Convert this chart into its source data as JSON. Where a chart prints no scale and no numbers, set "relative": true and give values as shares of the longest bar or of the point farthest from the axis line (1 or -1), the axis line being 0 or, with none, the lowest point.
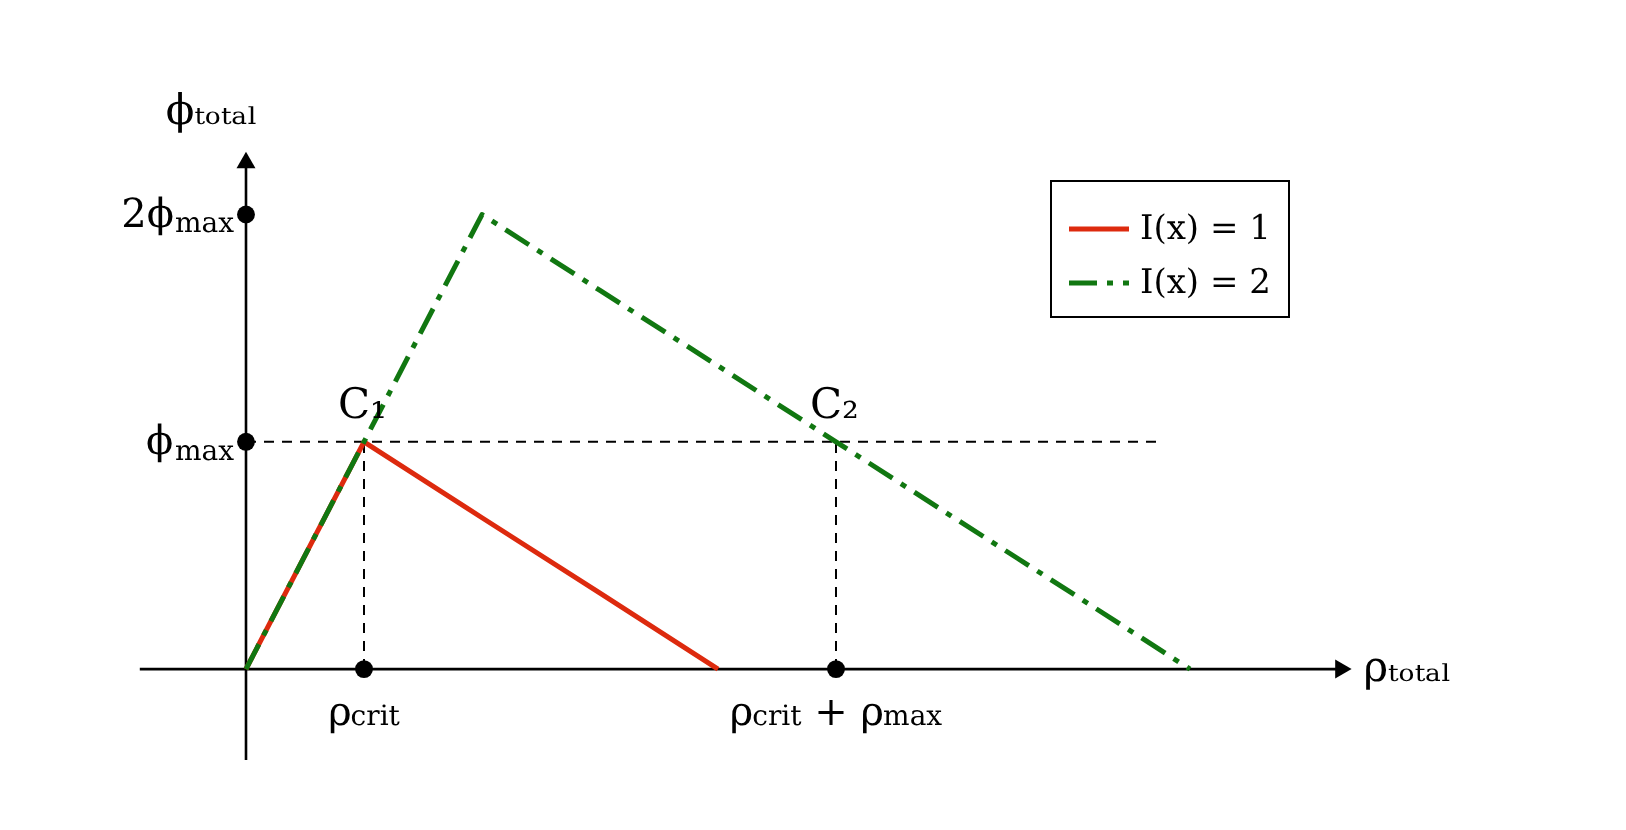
{
  "chart_data": {
    "type": "line",
    "relative": true,
    "xlabel": "ρₜₒₜₐₗ",
    "ylabel": "ϕₜₒₜₐₗ",
    "categories": [
      null,
      null,
      "ρ$_{crit}$",
      null,
      null,
      null,
      "ρ$_{crit}$ + ρ$_{max}$",
      null,
      null,
      null,
      null
    ],
    "series": [
      {
        "name": "I(x) = 1",
        "color": "#dd2a0e",
        "values": [
          null,
          0,
          0.5,
          0.333,
          0.167,
          0,
          null,
          null,
          null,
          null,
          null
        ],
        "line_style": "solid"
      },
      {
        "name": "I(x) = 2",
        "color": "#117711",
        "values": [
          null,
          0,
          0.5,
          1,
          0.833,
          0.667,
          0.5,
          0.333,
          0.167,
          0,
          null
        ],
        "line_style": "dashed"
      }
    ],
    "ref_lines": [
      {
        "axis": "y",
        "value": 0.5,
        "line_style": "dashed",
        "label": "ϕ$_{max}$"
      },
      {
        "axis": "x",
        "value": "ρ$_{crit}$",
        "line_style": "dashed"
      },
      {
        "axis": "x",
        "value": "ρ$_{crit}$ + ρ$_{max}$",
        "line_style": "dashed"
      }
    ],
    "annotations": [
      {
        "text": "C₁",
        "x": "ρ$_{crit}$",
        "y": 0.5
      },
      {
        "text": "C₂",
        "x": "ρ$_{crit}$ + ρ$_{max}$",
        "y": 0.5
      },
      "2ϕ$_{max}$"
    ],
    "legend": "top right"
  }
}
